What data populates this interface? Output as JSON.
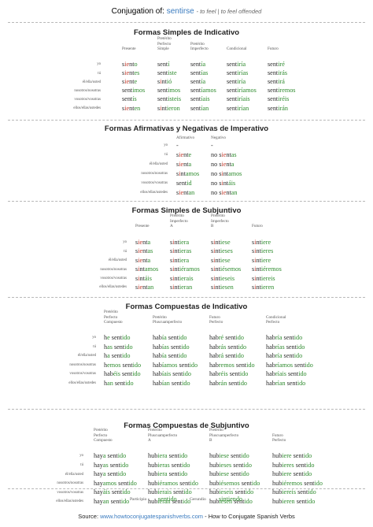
{
  "header": {
    "prefix": "Conjugation of:",
    "verb": "sentirse",
    "translation": "- to feel | to feel offended"
  },
  "colors": {
    "stem": "#2a2a2a",
    "ending": "#2e8b2e",
    "irregular": "#c0392b",
    "link": "#3a7bbf"
  },
  "sections": [
    {
      "title": "Formas Simples de Indicativo",
      "headers": [
        "Presente",
        "Pretérito\nPerfecto\nSimple",
        "Pretérito\nImperfecto",
        "Condicional",
        "Futuro"
      ],
      "pronouns": [
        "yo",
        "tú",
        "él/ella/usted",
        "nosotros/nosotras",
        "vosotros/vosotras",
        "ellos/ellas/ustedes"
      ],
      "rows": [
        [
          "siento",
          "sentí",
          "sentía",
          "sentiría",
          "sentiré"
        ],
        [
          "sientes",
          "sentiste",
          "sentías",
          "sentirías",
          "sentirás"
        ],
        [
          "siente",
          "sintió",
          "sentía",
          "sentiría",
          "sentirá"
        ],
        [
          "sentimos",
          "sentimos",
          "sentíamos",
          "sentiríamos",
          "sentiremos"
        ],
        [
          "sentís",
          "sentisteis",
          "sentíais",
          "sentiríais",
          "sentiréis"
        ],
        [
          "sienten",
          "sintieron",
          "sentían",
          "sentirían",
          "sentirán"
        ]
      ]
    },
    {
      "title": "Formas Afirmativas y Negativas de Imperativo",
      "headers": [
        "Afirmativo",
        "Negativo"
      ],
      "pronouns": [
        "yo",
        "tú",
        "él/ella/usted",
        "nosotros/nosotras",
        "vosotros/vosotras",
        "ellos/ellas/ustedes"
      ],
      "rows": [
        [
          "-",
          "-"
        ],
        [
          "siente",
          "no sientas"
        ],
        [
          "sienta",
          "no sienta"
        ],
        [
          "sintamos",
          "no sintamos"
        ],
        [
          "sentid",
          "no sintáis"
        ],
        [
          "sientan",
          "no sientan"
        ]
      ]
    },
    {
      "title": "Formas Simples de Subjuntivo",
      "headers": [
        "Presente",
        "Pretérito\nImperfecto\nA",
        "Pretérito\nImperfecto\nB",
        "Futuro"
      ],
      "pronouns": [
        "yo",
        "tú",
        "él/ella/usted",
        "nosotros/nosotras",
        "vosotros/vosotras",
        "ellos/ellas/ustedes"
      ],
      "rows": [
        [
          "sienta",
          "sintiera",
          "sintiese",
          "sintiere"
        ],
        [
          "sientas",
          "sintieras",
          "sintieses",
          "sintieres"
        ],
        [
          "sienta",
          "sintiera",
          "sintiese",
          "sintiere"
        ],
        [
          "sintamos",
          "sintiéramos",
          "sintiésemos",
          "sintiéremos"
        ],
        [
          "sintáis",
          "sintierais",
          "sintieseis",
          "sintiereis"
        ],
        [
          "sientan",
          "sintieran",
          "sintiesen",
          "sintieren"
        ]
      ]
    },
    {
      "title": "Formas Compuestas de Indicativo",
      "headers": [
        "Pretérito\nPerfecto\nCompuesto",
        "Pretérito\nPluscuamperfecto",
        "Futuro\nPerfecto",
        "Condicional\nPerfecto"
      ],
      "pronouns": [
        "yo",
        "tú",
        "él/ella/usted",
        "nosotros/nosotras",
        "vosotros/vosotras",
        "ellos/ellas/ustedes"
      ],
      "rows": [
        [
          "he sentido",
          "había sentido",
          "habré sentido",
          "habría sentido"
        ],
        [
          "has sentido",
          "habías sentido",
          "habrás sentido",
          "habrías sentido"
        ],
        [
          "ha sentido",
          "había sentido",
          "habrá sentido",
          "habría sentido"
        ],
        [
          "hemos sentido",
          "habíamos sentido",
          "habremos sentido",
          "habríamos sentido"
        ],
        [
          "habéis sentido",
          "habíais sentido",
          "habréis sentido",
          "habríais sentido"
        ],
        [
          "han sentido",
          "habían sentido",
          "habrán sentido",
          "habrían sentido"
        ]
      ]
    },
    {
      "title": "Formas Compuestas de Subjuntivo",
      "headers": [
        "Pretérito\nPerfecto\nCompuesto",
        "Pretérito\nPluscuamperfecto\nA",
        "Pretérito\nPluscuamperfecto\nB",
        "Futuro\nPerfecto"
      ],
      "pronouns": [
        "yo",
        "tú",
        "él/ella/usted",
        "nosotros/nosotras",
        "vosotros/vosotras",
        "ellos/ellas/ustedes"
      ],
      "rows": [
        [
          "haya sentido",
          "hubiera sentido",
          "hubiese sentido",
          "hubiere sentido"
        ],
        [
          "hayas sentido",
          "hubieras sentido",
          "hubieses sentido",
          "hubieres sentido"
        ],
        [
          "haya sentido",
          "hubiera sentido",
          "hubiese sentido",
          "hubiere sentido"
        ],
        [
          "hayamos sentido",
          "hubiéramos sentido",
          "hubiésemos sentido",
          "hubiéremos sentido"
        ],
        [
          "hayáis sentido",
          "hubierais sentido",
          "hubieseis sentido",
          "hubiereis sentido"
        ],
        [
          "hayan sentido",
          "hubieran sentido",
          "hubiesen sentido",
          "hubieren sentido"
        ]
      ]
    }
  ],
  "participle": {
    "label": "Participio",
    "value": "sentido"
  },
  "gerund": {
    "label": "Gerundio",
    "value": "sintiendo"
  },
  "footer": {
    "prefix": "Source:",
    "url": "www.howtoconjugatespanishverbs.com",
    "suffix": "- How to Conjugate Spanish Verbs"
  }
}
